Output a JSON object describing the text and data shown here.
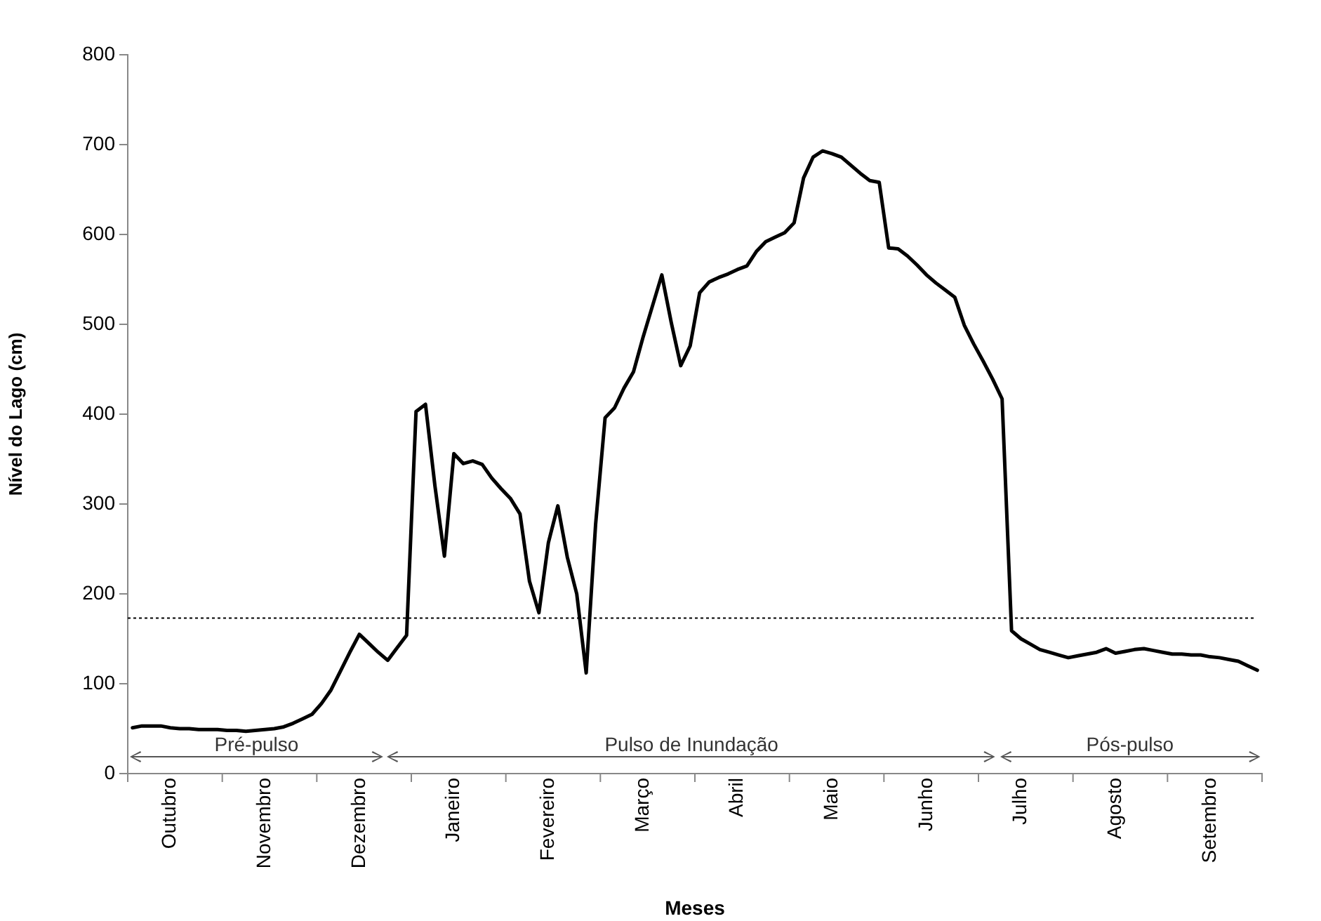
{
  "chart_data": {
    "type": "line",
    "xlabel": "Meses",
    "ylabel": "Nível do Lago (cm)",
    "categories": [
      null,
      null,
      null,
      null,
      "Outubro",
      null,
      null,
      null,
      null,
      null,
      null,
      null,
      null,
      null,
      "Novembro",
      null,
      null,
      null,
      null,
      null,
      null,
      null,
      null,
      null,
      "Dezembro",
      null,
      null,
      null,
      null,
      null,
      null,
      null,
      null,
      null,
      "Janeiro",
      null,
      null,
      null,
      null,
      null,
      null,
      null,
      null,
      null,
      "Fevereiro",
      null,
      null,
      null,
      null,
      null,
      null,
      null,
      null,
      null,
      "Março",
      null,
      null,
      null,
      null,
      null,
      null,
      null,
      null,
      null,
      "Abril",
      null,
      null,
      null,
      null,
      null,
      null,
      null,
      null,
      null,
      "Maio",
      null,
      null,
      null,
      null,
      null,
      null,
      null,
      null,
      null,
      "Junho",
      null,
      null,
      null,
      null,
      null,
      null,
      null,
      null,
      null,
      "Julho",
      null,
      null,
      null,
      null,
      null,
      null,
      null,
      null,
      null,
      "Agosto",
      null,
      null,
      null,
      null,
      null,
      null,
      null,
      null,
      null,
      "Setembro",
      null,
      null,
      null,
      null,
      null
    ],
    "series": [
      {
        "color": "#000000",
        "values": [
          51,
          53,
          53,
          53,
          51,
          50,
          50,
          49,
          49,
          49,
          48,
          48,
          47,
          48,
          49,
          50,
          52,
          56,
          61,
          66,
          78,
          93,
          114,
          135,
          155,
          145,
          135,
          126,
          140,
          154,
          403,
          411,
          320,
          242,
          356,
          345,
          348,
          344,
          329,
          317,
          306,
          289,
          214,
          179,
          257,
          298,
          241,
          200,
          112,
          278,
          396,
          407,
          429,
          447,
          485,
          520,
          555,
          502,
          454,
          476,
          535,
          547,
          552,
          556,
          561,
          565,
          581,
          592,
          597,
          602,
          613,
          663,
          686,
          693,
          690,
          686,
          677,
          668,
          660,
          658,
          585,
          584,
          576,
          566,
          555,
          546,
          538,
          530,
          499,
          478,
          459,
          439,
          417,
          159,
          150,
          144,
          138,
          135,
          132,
          129,
          131,
          133,
          135,
          139,
          134,
          136,
          138,
          139,
          137,
          135,
          133,
          133,
          132,
          132,
          130,
          129,
          127,
          125,
          120,
          115
        ]
      }
    ],
    "ylim": [
      0,
      800
    ],
    "yticks": [
      0,
      100,
      200,
      300,
      400,
      500,
      600,
      700,
      800
    ],
    "grid": false,
    "legend": false,
    "marker": "none",
    "line_style": "solid",
    "ref_lines": [
      {
        "axis": "y",
        "value": 173,
        "line_style": "dotted"
      }
    ],
    "annotations": [
      "Pré-pulso",
      "Pulso de Inundação",
      "Pós-pulso"
    ]
  }
}
